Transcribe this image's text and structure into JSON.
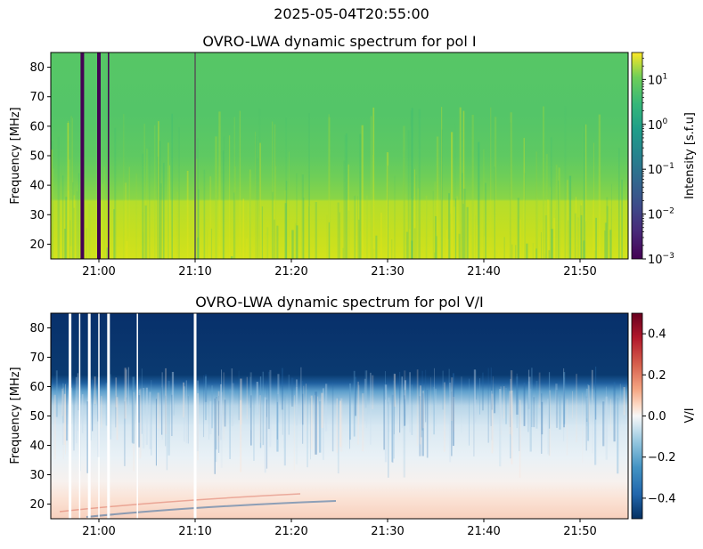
{
  "figure": {
    "suptitle": "2025-05-04T20:55:00"
  },
  "chart_data": [
    {
      "type": "heatmap",
      "title": "OVRO-LWA dynamic spectrum for pol I",
      "xlabel": "",
      "ylabel": "Frequency [MHz]",
      "colorbar_label": "Intensity [s.f.u]",
      "colormap": "viridis",
      "color_scale": "log",
      "clim": [
        0.001,
        40
      ],
      "x_range": [
        "20:55",
        "21:55"
      ],
      "x_ticks": [
        "21:00",
        "21:10",
        "21:20",
        "21:30",
        "21:40",
        "21:50"
      ],
      "ylim": [
        15,
        85
      ],
      "y_ticks": [
        20,
        30,
        40,
        50,
        60,
        70,
        80
      ],
      "colorbar_ticks": [
        {
          "base": "10",
          "exp": "1"
        },
        {
          "base": "10",
          "exp": "0"
        },
        {
          "base": "10",
          "exp": "−1"
        },
        {
          "base": "10",
          "exp": "−2"
        },
        {
          "base": "10",
          "exp": "−3"
        }
      ],
      "colorbar_tick_values": [
        10,
        1,
        0.1,
        0.01,
        0.001
      ],
      "intensity_profile_sfu": [
        {
          "freq_mhz": [
            15,
            35
          ],
          "level": 12
        },
        {
          "freq_mhz": [
            35,
            50
          ],
          "level": 2
        },
        {
          "freq_mhz": [
            50,
            85
          ],
          "level": 1.2
        }
      ],
      "gaps_utc": [
        "20:58",
        "21:00",
        "21:01",
        "21:10"
      ]
    },
    {
      "type": "heatmap",
      "title": "OVRO-LWA dynamic spectrum for pol V/I",
      "xlabel": "",
      "ylabel": "Frequency [MHz]",
      "colorbar_label": "V/I",
      "colormap": "RdBu_r",
      "clim": [
        -0.5,
        0.5
      ],
      "x_range": [
        "20:55",
        "21:55"
      ],
      "x_ticks": [
        "21:00",
        "21:10",
        "21:20",
        "21:30",
        "21:40",
        "21:50"
      ],
      "ylim": [
        15,
        85
      ],
      "y_ticks": [
        20,
        30,
        40,
        50,
        60,
        70,
        80
      ],
      "colorbar_ticks": [
        "0.4",
        "0.2",
        "0.0",
        "−0.2",
        "−0.4"
      ],
      "colorbar_tick_values": [
        0.4,
        0.2,
        0.0,
        -0.2,
        -0.4
      ],
      "vi_profile": [
        {
          "freq_mhz": [
            15,
            27
          ],
          "level": 0.05
        },
        {
          "freq_mhz": [
            27,
            50
          ],
          "level": -0.08
        },
        {
          "freq_mhz": [
            50,
            62
          ],
          "level": -0.3
        },
        {
          "freq_mhz": [
            62,
            85
          ],
          "level": -0.5
        }
      ],
      "gaps_utc": [
        "20:57",
        "20:58",
        "20:59",
        "21:00",
        "21:01",
        "21:04",
        "21:10"
      ]
    }
  ]
}
